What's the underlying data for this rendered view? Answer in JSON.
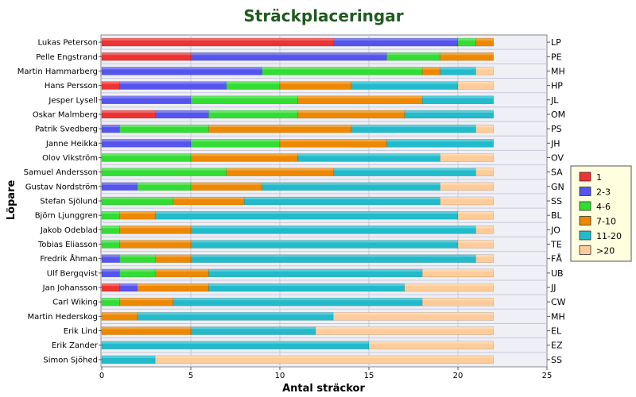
{
  "chart_data": {
    "type": "bar",
    "orientation": "horizontal",
    "stacked": true,
    "title": "Sträckplaceringar",
    "xlabel": "Antal sträckor",
    "ylabel": "Löpare",
    "xlim": [
      0,
      25
    ],
    "xticks": [
      "0",
      "5",
      "10",
      "15",
      "20",
      "25"
    ],
    "grid": true,
    "legend_position": "right",
    "colors": [
      "#ee3333",
      "#5555ee",
      "#33dd33",
      "#ee8800",
      "#22bbcc",
      "#ffcc99"
    ],
    "categories": [
      "Lukas Peterson",
      "Pelle Engstrand",
      "Martin Hammarberg",
      "Hans Persson",
      "Jesper Lysell",
      "Oskar Malmberg",
      "Patrik Svedberg",
      "Janne Heikka",
      "Olov Vikström",
      "Samuel Andersson",
      "Gustav Nordström",
      "Stefan Sjölund",
      "Björn Ljunggren",
      "Jakob Odeblad",
      "Tobias Eliasson",
      "Fredrik Åhman",
      "Ulf Bergqvist",
      "Jan Johansson",
      "Carl Wiking",
      "Martin Hederskog",
      "Erik Lind",
      "Erik Zander",
      "Simon Sjöhed"
    ],
    "right_labels": [
      "LP",
      "PE",
      "MH",
      "HP",
      "JL",
      "OM",
      "PS",
      "JH",
      "OV",
      "SA",
      "GN",
      "SS",
      "BL",
      "JO",
      "TE",
      "FÅ",
      "UB",
      "JJ",
      "CW",
      "MH",
      "EL",
      "EZ",
      "SS"
    ],
    "series": [
      {
        "name": "1",
        "values": [
          13,
          5,
          0,
          1,
          0,
          3,
          0,
          0,
          0,
          0,
          0,
          0,
          0,
          0,
          0,
          0,
          0,
          1,
          0,
          0,
          0,
          0,
          0
        ]
      },
      {
        "name": "2-3",
        "values": [
          7,
          11,
          9,
          6,
          5,
          3,
          1,
          5,
          0,
          0,
          2,
          0,
          0,
          0,
          0,
          1,
          1,
          1,
          0,
          0,
          0,
          0,
          0
        ]
      },
      {
        "name": "4-6",
        "values": [
          1,
          3,
          9,
          3,
          6,
          5,
          5,
          5,
          5,
          7,
          3,
          4,
          1,
          1,
          1,
          2,
          2,
          0,
          1,
          0,
          0,
          0,
          0
        ]
      },
      {
        "name": "7-10",
        "values": [
          1,
          3,
          1,
          4,
          7,
          6,
          8,
          6,
          6,
          6,
          4,
          4,
          2,
          4,
          4,
          2,
          3,
          4,
          3,
          2,
          5,
          0,
          0
        ]
      },
      {
        "name": "11-20",
        "values": [
          0,
          0,
          2,
          6,
          4,
          5,
          7,
          6,
          8,
          8,
          10,
          11,
          17,
          16,
          15,
          16,
          12,
          11,
          14,
          11,
          7,
          15,
          3
        ]
      },
      {
        "name": ">20",
        "values": [
          0,
          0,
          1,
          2,
          0,
          0,
          1,
          0,
          3,
          1,
          3,
          3,
          2,
          1,
          2,
          1,
          4,
          5,
          4,
          9,
          10,
          7,
          19
        ]
      }
    ]
  }
}
